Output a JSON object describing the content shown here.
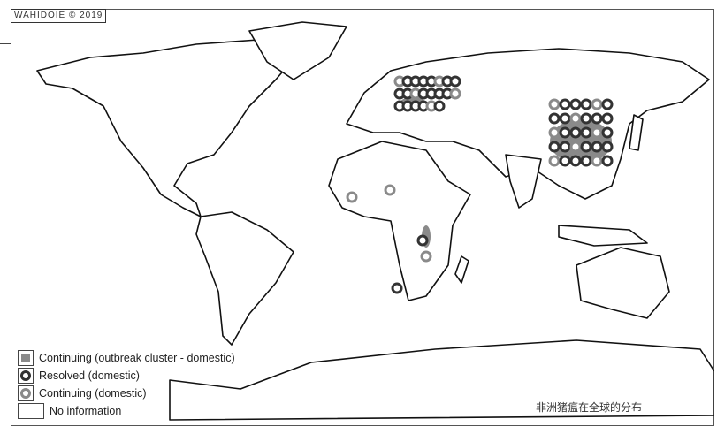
{
  "credit": "WAHIDOIE © 2019",
  "caption": "非洲猪瘟在全球的分布",
  "legend": [
    {
      "label": "Continuing (outbreak cluster - domestic)",
      "symbol": "cluster",
      "color": "#8a8a8a"
    },
    {
      "label": "Resolved (domestic)",
      "symbol": "ring-dark",
      "color": "#333333"
    },
    {
      "label": "Continuing (domestic)",
      "symbol": "ring-grey",
      "color": "#8a8a8a"
    },
    {
      "label": "No information",
      "symbol": "empty",
      "color": "#ffffff"
    }
  ]
}
